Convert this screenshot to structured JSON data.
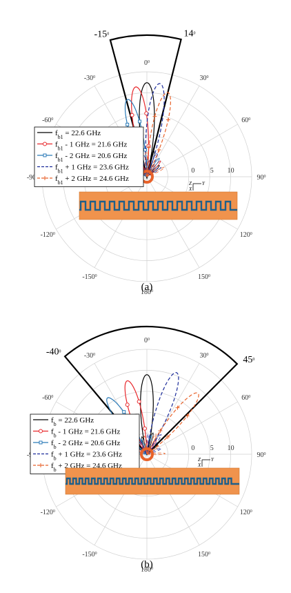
{
  "chart_data": [
    {
      "type": "polar",
      "panel_label": "(a)",
      "angle_ticks": [
        "0°",
        "30°",
        "60°",
        "90°",
        "120°",
        "150°",
        "180°",
        "-150°",
        "-120°",
        "-90°",
        "-60°",
        "-30°"
      ],
      "radial_ticks": [
        "0",
        "5",
        "10"
      ],
      "beam_edge_labels": [
        "-15°",
        "14°"
      ],
      "beam_edges_deg": [
        -15,
        14
      ],
      "legend": [
        {
          "label": "f_b1 = 22.6 GHz",
          "color": "#000000",
          "style": "solid",
          "marker": "none"
        },
        {
          "label": "f_b1 - 1 GHz = 21.6 GHz",
          "color": "#e8262a",
          "style": "solid",
          "marker": "circle"
        },
        {
          "label": "f_b1 - 2 GHz = 20.6 GHz",
          "color": "#2a7ab8",
          "style": "solid",
          "marker": "square"
        },
        {
          "label": "f_b1 + 1 GHz = 23.6 GHz",
          "color": "#1a2a9a",
          "style": "dashed",
          "marker": "none"
        },
        {
          "label": "f_b1 + 2 GHz = 24.6 GHz",
          "color": "#e8622a",
          "style": "dashed",
          "marker": "plus"
        }
      ],
      "series": [
        {
          "peak_angle_deg": 0,
          "peak_gain_dBi": 13
        },
        {
          "peak_angle_deg": -7,
          "peak_gain_dBi": 12.5
        },
        {
          "peak_angle_deg": -14,
          "peak_gain_dBi": 11
        },
        {
          "peak_angle_deg": 8,
          "peak_gain_dBi": 13
        },
        {
          "peak_angle_deg": 14,
          "peak_gain_dBi": 12
        }
      ],
      "inset_axis": "Z X Y"
    },
    {
      "type": "polar",
      "panel_label": "(b)",
      "angle_ticks": [
        "0°",
        "30°",
        "60°",
        "90°",
        "120°",
        "150°",
        "180°",
        "-150°",
        "-120°",
        "-90°",
        "-60°",
        "-30°"
      ],
      "radial_ticks": [
        "0",
        "5",
        "10"
      ],
      "beam_edge_labels": [
        "-40°",
        "45°"
      ],
      "beam_edges_deg": [
        -40,
        45
      ],
      "legend": [
        {
          "label": "f_b = 22.6 GHz",
          "color": "#000000",
          "style": "solid",
          "marker": "none"
        },
        {
          "label": "f_b - 1 GHz = 21.6 GHz",
          "color": "#e8262a",
          "style": "solid",
          "marker": "circle"
        },
        {
          "label": "f_b - 2 GHz = 20.6 GHz",
          "color": "#2a7ab8",
          "style": "solid",
          "marker": "square"
        },
        {
          "label": "f_b + 1 GHz = 23.6 GHz",
          "color": "#1a2a9a",
          "style": "dashed",
          "marker": "none"
        },
        {
          "label": "f_b + 2 GHz = 24.6 GHz",
          "color": "#e8622a",
          "style": "dashed",
          "marker": "plus"
        }
      ],
      "series": [
        {
          "peak_angle_deg": 0,
          "peak_gain_dBi": 11
        },
        {
          "peak_angle_deg": -15,
          "peak_gain_dBi": 10.5
        },
        {
          "peak_angle_deg": -35,
          "peak_gain_dBi": 9.5
        },
        {
          "peak_angle_deg": 20,
          "peak_gain_dBi": 12
        },
        {
          "peak_angle_deg": 40,
          "peak_gain_dBi": 11
        }
      ],
      "inset_axis": "Z X Y"
    }
  ]
}
